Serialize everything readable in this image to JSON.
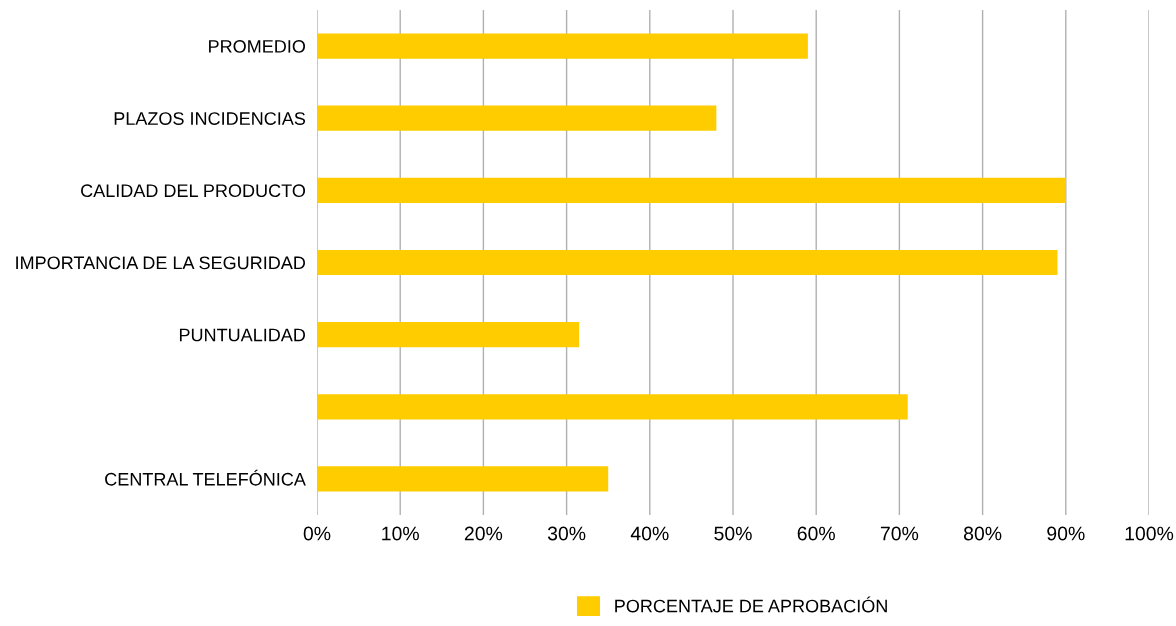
{
  "chart_data": {
    "type": "bar",
    "orientation": "horizontal",
    "categories": [
      "PROMEDIO",
      "PLAZOS INCIDENCIAS",
      "CALIDAD DEL PRODUCTO",
      "IMPORTANCIA DE LA SEGURIDAD",
      "PUNTUALIDAD",
      null,
      "CENTRAL TELEFÓNICA"
    ],
    "series": [
      {
        "name": "PORCENTAJE DE APROBACIÓN",
        "color": "#ffcc00",
        "values": [
          59,
          48,
          90,
          89,
          31.5,
          71,
          35
        ]
      }
    ],
    "xlim": [
      0,
      100
    ],
    "xticks": [
      {
        "value": 0,
        "label": "0%"
      },
      {
        "value": 10,
        "label": "10%"
      },
      {
        "value": 20,
        "label": "20%"
      },
      {
        "value": 30,
        "label": "30%"
      },
      {
        "value": 40,
        "label": "40%"
      },
      {
        "value": 50,
        "label": "50%"
      },
      {
        "value": 60,
        "label": "60%"
      },
      {
        "value": 70,
        "label": "70%"
      },
      {
        "value": 80,
        "label": "80%"
      },
      {
        "value": 90,
        "label": "90%"
      },
      {
        "value": 100,
        "label": "100%"
      }
    ],
    "grid": "x",
    "legend": "bottom"
  }
}
